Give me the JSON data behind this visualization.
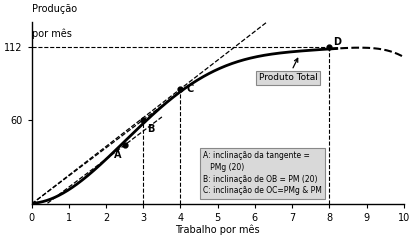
{
  "title_line1": "Produção",
  "title_line2": "por mês",
  "xlabel": "Trabalho por mês",
  "xlim": [
    0,
    10
  ],
  "ylim": [
    0,
    130
  ],
  "xticks": [
    0,
    1,
    2,
    3,
    4,
    5,
    6,
    7,
    8,
    9,
    10
  ],
  "yticks": [
    60,
    112
  ],
  "point_A": [
    2.5,
    42
  ],
  "point_B": [
    3,
    60
  ],
  "point_C": [
    4,
    82
  ],
  "point_D": [
    8,
    112
  ],
  "slope_OB": 20,
  "slope_tangent_A": 20,
  "annotation_text": "A: inclinação da tangente =\n   PMg (20)\nB: inclinação de OB = PM (20)\nC: inclinação de OC=PMg & PM",
  "label_produto_total": "Produto Total",
  "shaded_color": "#cccccc",
  "background_color": "#ffffff"
}
